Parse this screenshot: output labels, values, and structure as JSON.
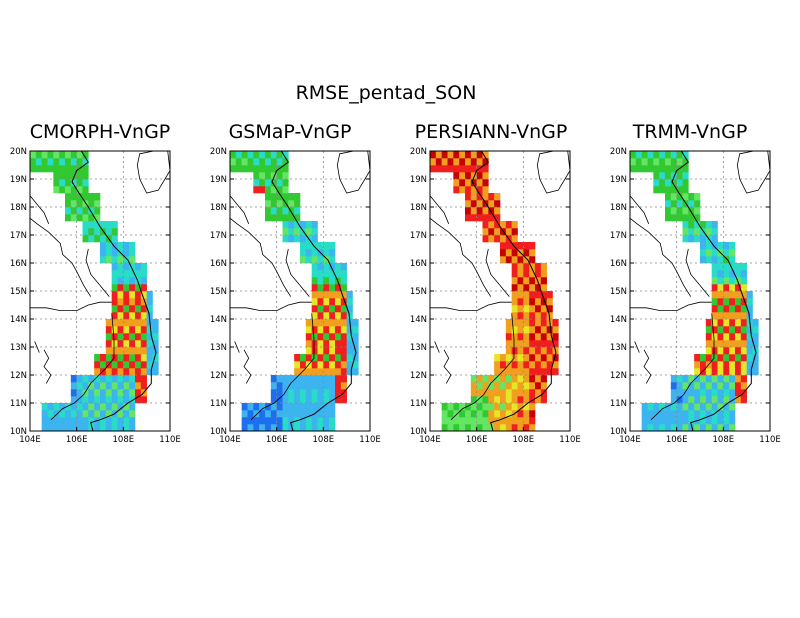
{
  "figure": {
    "title": "RMSE_pentad_SON"
  },
  "panels": [
    {
      "title": "CMORPH-VnGP"
    },
    {
      "title": "GSMaP-VnGP"
    },
    {
      "title": "PERSIANN-VnGP"
    },
    {
      "title": "TRMM-VnGP"
    }
  ],
  "axes": {
    "x_ticks": [
      "104E",
      "106E",
      "108E",
      "110E"
    ],
    "y_ticks": [
      "10N",
      "11N",
      "12N",
      "13N",
      "14N",
      "15N",
      "16N",
      "17N",
      "18N",
      "19N",
      "20N"
    ],
    "lon_range": [
      104,
      110
    ],
    "lat_range": [
      10,
      20
    ],
    "grid": "dotted"
  },
  "colors": {
    "blue": "#1e6ef0",
    "lightblue": "#3cb4f0",
    "cyan": "#28dcc8",
    "lightgreen": "#64e664",
    "green": "#32c832",
    "yellow": "#e6e628",
    "orange": "#f0a01e",
    "red": "#f01e1e",
    "darkred": "#c80000"
  }
}
